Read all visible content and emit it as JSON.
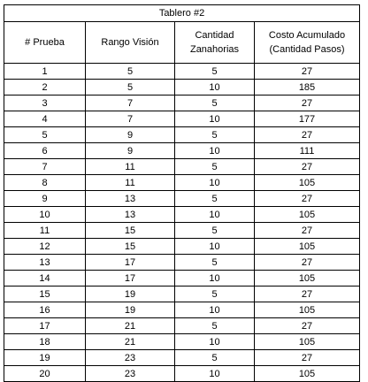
{
  "table": {
    "title": "Tablero #2",
    "headers": [
      {
        "line1": "# Prueba",
        "line2": ""
      },
      {
        "line1": "Rango Visión",
        "line2": ""
      },
      {
        "line1": "Cantidad",
        "line2": "Zanahorias"
      },
      {
        "line1": "Costo Acumulado",
        "line2": "(Cantidad Pasos)"
      }
    ],
    "rows": [
      [
        "1",
        "5",
        "5",
        "27"
      ],
      [
        "2",
        "5",
        "10",
        "185"
      ],
      [
        "3",
        "7",
        "5",
        "27"
      ],
      [
        "4",
        "7",
        "10",
        "177"
      ],
      [
        "5",
        "9",
        "5",
        "27"
      ],
      [
        "6",
        "9",
        "10",
        "111"
      ],
      [
        "7",
        "11",
        "5",
        "27"
      ],
      [
        "8",
        "11",
        "10",
        "105"
      ],
      [
        "9",
        "13",
        "5",
        "27"
      ],
      [
        "10",
        "13",
        "10",
        "105"
      ],
      [
        "11",
        "15",
        "5",
        "27"
      ],
      [
        "12",
        "15",
        "10",
        "105"
      ],
      [
        "13",
        "17",
        "5",
        "27"
      ],
      [
        "14",
        "17",
        "10",
        "105"
      ],
      [
        "15",
        "19",
        "5",
        "27"
      ],
      [
        "16",
        "19",
        "10",
        "105"
      ],
      [
        "17",
        "21",
        "5",
        "27"
      ],
      [
        "18",
        "21",
        "10",
        "105"
      ],
      [
        "19",
        "23",
        "5",
        "27"
      ],
      [
        "20",
        "23",
        "10",
        "105"
      ]
    ]
  }
}
